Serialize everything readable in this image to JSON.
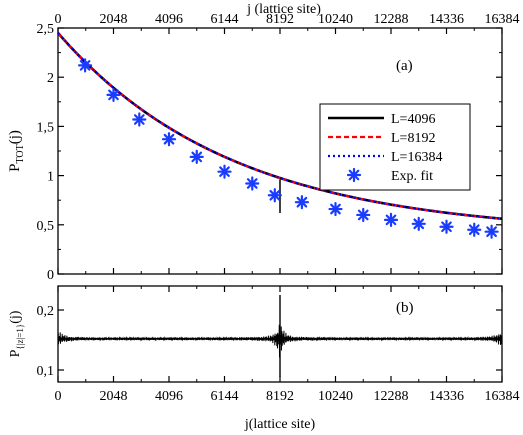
{
  "chart_data": [
    {
      "panel": "(a)",
      "type": "line",
      "xlabel_top": "j (lattice site)",
      "ylabel_main": "P",
      "ylabel_sub": "TOT",
      "ylabel_suffix": "(j)",
      "xlim": [
        0,
        16384
      ],
      "ylim": [
        0,
        2.5
      ],
      "x_ticks": [
        0,
        2048,
        4096,
        6144,
        8192,
        10240,
        12288,
        14336,
        16384
      ],
      "x_tick_labels": [
        "0",
        "2048",
        "4096",
        "6144",
        "8192",
        "10240",
        "12288",
        "14336",
        "16384"
      ],
      "y_ticks": [
        0,
        0.5,
        1,
        1.5,
        2,
        2.5
      ],
      "y_tick_labels": [
        "0",
        "0,5",
        "1",
        "1,5",
        "2",
        "2,5"
      ],
      "legend_position": "right",
      "series": [
        {
          "name": "L=4096",
          "style": "solid",
          "color": "#000000"
        },
        {
          "name": "L=8192",
          "style": "dashed",
          "color": "#ff0000"
        },
        {
          "name": "L=16384",
          "style": "dotted",
          "color": "#0000ff"
        },
        {
          "name": "Exp. fit",
          "style": "marker",
          "color": "#1a3cff",
          "x": [
            1000,
            2048,
            3000,
            4096,
            5120,
            6144,
            7168,
            8000,
            9000,
            10240,
            11264,
            12288,
            13312,
            14336,
            15360,
            16000
          ],
          "y": [
            2.12,
            1.82,
            1.57,
            1.37,
            1.19,
            1.04,
            0.92,
            0.8,
            0.73,
            0.66,
            0.6,
            0.55,
            0.51,
            0.48,
            0.45,
            0.43
          ]
        }
      ],
      "curve_model": {
        "a": 2.05,
        "k": 0.000155,
        "c": 0.4
      },
      "spike": {
        "x": 8192,
        "ymin": 0.62,
        "ymax": 0.96
      }
    },
    {
      "panel": "(b)",
      "type": "line",
      "xlabel": "j(lattice site)",
      "ylabel_main": "P",
      "ylabel_sub": "{|z|=1}",
      "ylabel_suffix": "(j)",
      "xlim": [
        0,
        16384
      ],
      "ylim": [
        0.08,
        0.24
      ],
      "x_ticks": [
        0,
        2048,
        4096,
        6144,
        8192,
        10240,
        12288,
        14336,
        16384
      ],
      "x_tick_labels": [
        "0",
        "2048",
        "4096",
        "6144",
        "8192",
        "10240",
        "12288",
        "14336",
        "16384"
      ],
      "y_ticks": [
        0.1,
        0.2
      ],
      "y_tick_labels": [
        "0,1",
        "0,2"
      ],
      "baseline": 0.152,
      "center_spike": {
        "x": 8192,
        "ymin": 0.088,
        "ymax": 0.225
      }
    }
  ]
}
